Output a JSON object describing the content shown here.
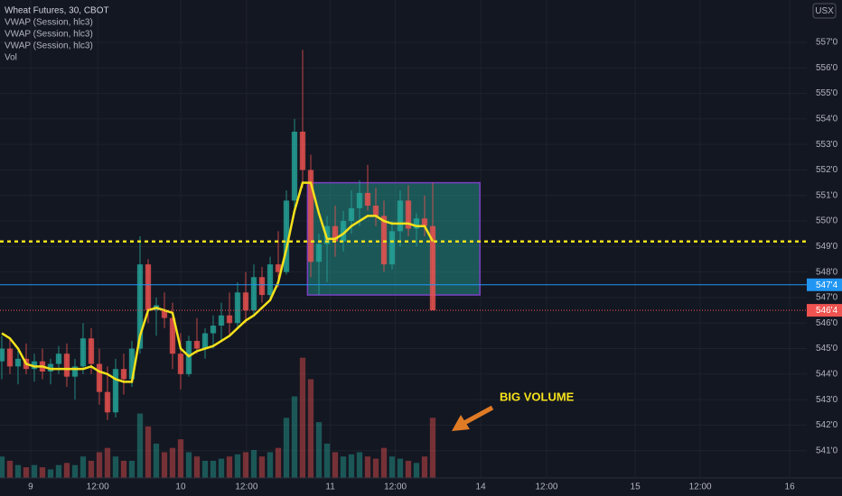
{
  "chart_data": {
    "type": "candlestick",
    "title": "Wheat Futures, 30, CBOT",
    "indicators": [
      "VWAP (Session, hlc3)",
      "VWAP (Session, hlc3)",
      "VWAP (Session, hlc3)",
      "Vol"
    ],
    "currency": "USX",
    "open": [
      544.5,
      545.0,
      544.3,
      544.6,
      544.2,
      544.5,
      544.1,
      544.4,
      544.8,
      543.9,
      544.3,
      545.4,
      544.4,
      543.3,
      542.5,
      544.2,
      543.8,
      545.0,
      548.3,
      546.5,
      546.5,
      546.2,
      544.8,
      544.0,
      545.3,
      545.0,
      545.6,
      545.9,
      546.3,
      546.0,
      547.2,
      546.5,
      547.8,
      547.1,
      548.3,
      548.0,
      550.8,
      553.5,
      552.0,
      548.4,
      549.1,
      549.8,
      549.2,
      550.0,
      550.5,
      551.1,
      550.6,
      550.2,
      548.3,
      549.6,
      550.8,
      549.7,
      550.1,
      549.8
    ],
    "high": [
      545.5,
      545.4,
      545.0,
      545.2,
      544.8,
      545.0,
      544.6,
      545.1,
      545.2,
      544.6,
      546.0,
      545.8,
      545.0,
      544.3,
      544.6,
      544.8,
      545.3,
      549.4,
      548.5,
      547.0,
      547.2,
      546.8,
      545.6,
      545.5,
      546.2,
      545.8,
      546.3,
      546.8,
      547.2,
      547.6,
      548.0,
      548.3,
      548.2,
      548.6,
      549.6,
      551.2,
      554.0,
      556.7,
      552.6,
      549.5,
      550.2,
      550.6,
      550.4,
      551.2,
      551.6,
      552.2,
      551.3,
      550.8,
      550.0,
      551.2,
      551.4,
      550.3,
      551.0,
      551.5
    ],
    "low": [
      543.8,
      544.0,
      543.6,
      544.0,
      543.7,
      543.8,
      543.6,
      544.0,
      543.5,
      543.0,
      544.0,
      544.0,
      542.8,
      542.2,
      542.3,
      543.2,
      543.5,
      544.8,
      546.0,
      545.5,
      545.8,
      544.2,
      543.4,
      543.9,
      544.8,
      544.6,
      545.0,
      545.3,
      545.5,
      545.8,
      546.0,
      546.3,
      546.8,
      546.9,
      547.4,
      547.9,
      550.5,
      551.3,
      547.8,
      547.1,
      547.6,
      548.6,
      548.8,
      549.5,
      549.8,
      550.4,
      549.8,
      548.0,
      548.1,
      549.0,
      549.4,
      549.0,
      549.4,
      546.5
    ],
    "close": [
      545.0,
      544.3,
      544.6,
      544.2,
      544.5,
      544.1,
      544.4,
      544.8,
      543.9,
      544.3,
      545.4,
      544.4,
      543.3,
      542.5,
      544.2,
      543.8,
      545.0,
      548.3,
      546.5,
      546.7,
      546.2,
      544.8,
      544.0,
      545.3,
      545.0,
      545.6,
      545.9,
      546.3,
      546.0,
      547.2,
      546.5,
      547.8,
      547.1,
      548.3,
      548.0,
      550.8,
      553.5,
      552.0,
      548.4,
      549.1,
      549.8,
      549.2,
      550.0,
      550.5,
      551.1,
      550.6,
      550.2,
      548.3,
      549.6,
      550.8,
      549.7,
      550.1,
      549.8,
      546.5
    ],
    "volume": [
      500,
      400,
      300,
      250,
      300,
      250,
      200,
      300,
      350,
      300,
      500,
      400,
      600,
      700,
      500,
      400,
      400,
      1500,
      1200,
      800,
      600,
      700,
      900,
      600,
      500,
      400,
      400,
      450,
      500,
      550,
      600,
      650,
      500,
      600,
      700,
      1400,
      1900,
      2800,
      2300,
      1300,
      800,
      600,
      500,
      550,
      600,
      500,
      450,
      700,
      500,
      450,
      400,
      350,
      500,
      1400
    ],
    "vwap": [
      545.6,
      545.4,
      545.0,
      544.4,
      544.3,
      544.3,
      544.2,
      544.2,
      544.2,
      544.2,
      544.2,
      544.3,
      544.1,
      544.0,
      543.8,
      543.7,
      543.7,
      545.5,
      546.5,
      546.6,
      546.5,
      546.4,
      545.0,
      544.7,
      544.9,
      545.0,
      545.1,
      545.3,
      545.5,
      545.8,
      546.1,
      546.3,
      546.6,
      546.9,
      547.6,
      548.9,
      550.4,
      551.5,
      551.5,
      550.3,
      549.3,
      549.3,
      549.5,
      549.8,
      550.0,
      550.2,
      550.2,
      550.0,
      549.9,
      549.9,
      549.9,
      549.8,
      549.8,
      549.2
    ],
    "up_color": "#26a69a",
    "down_color": "#ef5350",
    "vwap_color": "#f5e21b",
    "ylim": [
      539.93,
      558.66
    ],
    "vlim": [
      0,
      4200
    ],
    "xlim": [
      -0.22,
      99
    ],
    "yticks": [
      {
        "value": 541,
        "label": "541'0"
      },
      {
        "value": 542,
        "label": "542'0"
      },
      {
        "value": 543,
        "label": "543'0"
      },
      {
        "value": 544,
        "label": "544'0"
      },
      {
        "value": 545,
        "label": "545'0"
      },
      {
        "value": 546,
        "label": "546'0"
      },
      {
        "value": 547,
        "label": "547'0"
      },
      {
        "value": 548,
        "label": "548'0"
      },
      {
        "value": 549,
        "label": "549'0"
      },
      {
        "value": 550,
        "label": "550'0"
      },
      {
        "value": 551,
        "label": "551'0"
      },
      {
        "value": 552,
        "label": "552'0"
      },
      {
        "value": 553,
        "label": "553'0"
      },
      {
        "value": 554,
        "label": "554'0"
      },
      {
        "value": 555,
        "label": "555'0"
      },
      {
        "value": 556,
        "label": "556'0"
      },
      {
        "value": 557,
        "label": "557'0"
      }
    ],
    "xticks": [
      {
        "value": 3.55,
        "label": "9"
      },
      {
        "value": 11.8,
        "label": "12:00"
      },
      {
        "value": 22,
        "label": "10"
      },
      {
        "value": 30.1,
        "label": "12:00"
      },
      {
        "value": 40.4,
        "label": "11"
      },
      {
        "value": 48.4,
        "label": "12:00"
      },
      {
        "value": 58.9,
        "label": "14"
      },
      {
        "value": 67,
        "label": "12:00"
      },
      {
        "value": 77.9,
        "label": "15"
      },
      {
        "value": 85.9,
        "label": "12:00"
      },
      {
        "value": 96.9,
        "label": "16"
      }
    ],
    "grid": true,
    "lines": [
      {
        "value": 549.2,
        "color": "#f5e21b",
        "style": "dotted"
      },
      {
        "value": 547.5,
        "color": "#2196f3",
        "style": "solid",
        "label": "547'4"
      },
      {
        "value": 546.5,
        "color": "#ef5350",
        "style": "dotted-thin",
        "label": "546'4"
      }
    ],
    "box": {
      "x": [
        37.6,
        58.8
      ],
      "y": [
        547.1,
        551.5
      ],
      "color": "#26a69a"
    },
    "annotation": "BIG VOLUME"
  }
}
